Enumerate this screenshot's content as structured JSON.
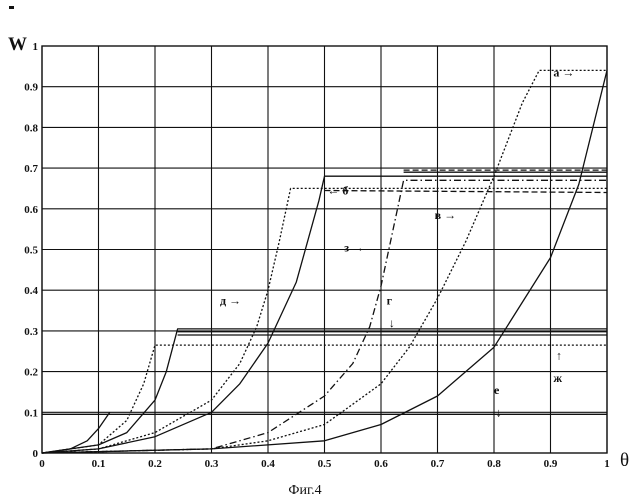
{
  "chart_data": {
    "type": "line",
    "ylabel": "W",
    "xlabel": "θ",
    "caption": "Фиг.4",
    "xlim": [
      0,
      1
    ],
    "ylim": [
      0,
      1
    ],
    "grid": true,
    "x_ticks": [
      0,
      0.1,
      0.2,
      0.3,
      0.4,
      0.5,
      0.6,
      0.7,
      0.8,
      0.9,
      1
    ],
    "x_tick_labels": [
      "0",
      "0.1",
      "0.2",
      "0.3",
      "0.4",
      "0.5",
      "0.6",
      "0.7",
      "0.8",
      "0.9",
      "1"
    ],
    "y_ticks": [
      0,
      0.1,
      0.2,
      0.3,
      0.4,
      0.5,
      0.6,
      0.7,
      0.8,
      0.9,
      1
    ],
    "y_tick_labels": [
      "0",
      "0.1",
      "0.2",
      "0.3",
      "0.4",
      "0.5",
      "0.6",
      "0.7",
      "0.8",
      "0.9",
      "1"
    ],
    "series": [
      {
        "name": "а",
        "style": "solid",
        "label_arrow": "→",
        "x": [
          0,
          0.3,
          0.5,
          0.6,
          0.7,
          0.8,
          0.9,
          0.95,
          1.0
        ],
        "y": [
          0,
          0.01,
          0.03,
          0.07,
          0.14,
          0.26,
          0.48,
          0.66,
          0.94
        ]
      },
      {
        "name": "б",
        "style": "solid",
        "label_arrow": "←",
        "x": [
          0,
          0.1,
          0.2,
          0.3,
          0.35,
          0.4,
          0.45,
          0.49,
          0.5,
          1.0
        ],
        "y": [
          0,
          0.01,
          0.04,
          0.1,
          0.17,
          0.27,
          0.42,
          0.62,
          0.68,
          0.68
        ]
      },
      {
        "name": "в",
        "style": "dotted",
        "label_arrow": "→",
        "x": [
          0,
          0.3,
          0.4,
          0.5,
          0.55,
          0.6,
          0.65,
          0.7,
          0.75,
          0.8,
          0.85,
          0.88,
          1.0
        ],
        "y": [
          0,
          0.01,
          0.03,
          0.07,
          0.12,
          0.17,
          0.26,
          0.38,
          0.52,
          0.68,
          0.86,
          0.94,
          0.94
        ]
      },
      {
        "name": "г",
        "style": "solid",
        "label_arrow": "↓",
        "x": [
          0,
          0.1,
          0.15,
          0.2,
          0.22,
          0.24,
          1.0
        ],
        "y": [
          0,
          0.02,
          0.05,
          0.13,
          0.2,
          0.305,
          0.305
        ]
      },
      {
        "name": "д",
        "style": "dotted",
        "label_arrow": "→",
        "x": [
          0,
          0.1,
          0.2,
          0.3,
          0.35,
          0.38,
          0.4,
          0.42,
          0.44,
          1.0
        ],
        "y": [
          0,
          0.01,
          0.05,
          0.13,
          0.22,
          0.31,
          0.4,
          0.52,
          0.65,
          0.65
        ]
      },
      {
        "name": "е",
        "style": "solid",
        "label_arrow": "↓",
        "x": [
          0,
          0.05,
          0.08,
          0.1,
          0.12
        ],
        "y": [
          0,
          0.01,
          0.03,
          0.06,
          0.1
        ]
      },
      {
        "name": "ж",
        "style": "dotted",
        "label_arrow": "↑",
        "x": [
          0,
          0.1,
          0.15,
          0.18,
          0.2,
          1.0
        ],
        "y": [
          0,
          0.02,
          0.08,
          0.17,
          0.265,
          0.265
        ]
      },
      {
        "name": "з",
        "style": "dashdot",
        "label_arrow": "→",
        "x": [
          0,
          0.3,
          0.4,
          0.5,
          0.55,
          0.58,
          0.6,
          0.62,
          0.64,
          1.0
        ],
        "y": [
          0,
          0.01,
          0.05,
          0.14,
          0.22,
          0.31,
          0.41,
          0.54,
          0.67,
          0.67
        ]
      }
    ],
    "extra_lines": [
      {
        "style": "dashed",
        "x": [
          0.64,
          1.0
        ],
        "y": [
          0.695,
          0.695
        ]
      },
      {
        "style": "solid",
        "x": [
          0.64,
          1.0
        ],
        "y": [
          0.69,
          0.69
        ]
      },
      {
        "style": "dashed",
        "x": [
          0.5,
          1.0
        ],
        "y": [
          0.645,
          0.64
        ]
      },
      {
        "style": "solid",
        "x": [
          0.24,
          1.0
        ],
        "y": [
          0.298,
          0.298
        ]
      },
      {
        "style": "solid",
        "x": [
          0.24,
          1.0
        ],
        "y": [
          0.29,
          0.29
        ]
      },
      {
        "style": "solid",
        "x": [
          0.0,
          1.0
        ],
        "y": [
          0.095,
          0.095
        ]
      }
    ],
    "annotations": [
      {
        "series": "а",
        "text": "а →",
        "x": 0.905,
        "y": 0.925
      },
      {
        "series": "б",
        "text": "← б",
        "x": 0.505,
        "y": 0.635
      },
      {
        "series": "в",
        "text": "в →",
        "x": 0.695,
        "y": 0.575
      },
      {
        "series": "з",
        "text": "з →",
        "x": 0.535,
        "y": 0.495
      },
      {
        "series": "д",
        "text": "д →",
        "x": 0.315,
        "y": 0.365
      },
      {
        "series": "г",
        "text": "г",
        "x": 0.61,
        "y": 0.365
      },
      {
        "series": "г",
        "text": "↓",
        "x": 0.614,
        "y": 0.31
      },
      {
        "series": "ж",
        "text": "↑",
        "x": 0.91,
        "y": 0.23
      },
      {
        "series": "ж",
        "text": "ж",
        "x": 0.905,
        "y": 0.175
      },
      {
        "series": "е",
        "text": "е",
        "x": 0.8,
        "y": 0.145
      },
      {
        "series": "е",
        "text": "↓",
        "x": 0.803,
        "y": 0.09
      }
    ]
  }
}
